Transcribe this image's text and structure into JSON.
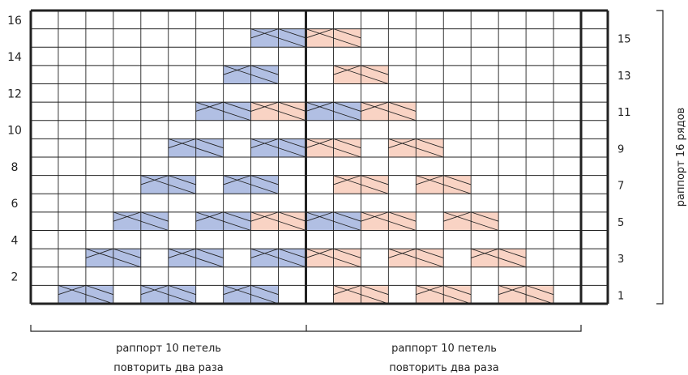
{
  "chart": {
    "columns": 20,
    "rows": 16,
    "left_row_labels": [
      "2",
      "4",
      "6",
      "8",
      "10",
      "12",
      "14",
      "16"
    ],
    "right_row_labels": [
      "1",
      "3",
      "5",
      "7",
      "9",
      "11",
      "13",
      "15"
    ],
    "side_label": "раппорт 16 рядов",
    "bottom_groups": [
      {
        "line1": "раппорт 10 петель",
        "line2": "повторить два раза"
      },
      {
        "line1": "раппорт 10 петель",
        "line2": "повторить два раза"
      }
    ],
    "legend_colors": {
      "blue": "#b1bfe3",
      "pink": "#f9d3c4",
      "grid": "#222222"
    }
  },
  "cables": [
    {
      "row": 1,
      "col": 2,
      "color": "blue"
    },
    {
      "row": 1,
      "col": 5,
      "color": "blue"
    },
    {
      "row": 1,
      "col": 8,
      "color": "blue"
    },
    {
      "row": 1,
      "col": 12,
      "color": "pink"
    },
    {
      "row": 1,
      "col": 15,
      "color": "pink"
    },
    {
      "row": 1,
      "col": 18,
      "color": "pink"
    },
    {
      "row": 3,
      "col": 3,
      "color": "blue"
    },
    {
      "row": 3,
      "col": 6,
      "color": "blue"
    },
    {
      "row": 3,
      "col": 9,
      "color": "blue"
    },
    {
      "row": 3,
      "col": 11,
      "color": "pink"
    },
    {
      "row": 3,
      "col": 14,
      "color": "pink"
    },
    {
      "row": 3,
      "col": 17,
      "color": "pink"
    },
    {
      "row": 5,
      "col": 4,
      "color": "blue"
    },
    {
      "row": 5,
      "col": 7,
      "color": "blue"
    },
    {
      "row": 5,
      "col": 9,
      "color": "pink"
    },
    {
      "row": 5,
      "col": 11,
      "color": "blue"
    },
    {
      "row": 5,
      "col": 13,
      "color": "pink"
    },
    {
      "row": 5,
      "col": 16,
      "color": "pink"
    },
    {
      "row": 7,
      "col": 5,
      "color": "blue"
    },
    {
      "row": 7,
      "col": 8,
      "color": "blue"
    },
    {
      "row": 7,
      "col": 12,
      "color": "pink"
    },
    {
      "row": 7,
      "col": 15,
      "color": "pink"
    },
    {
      "row": 9,
      "col": 6,
      "color": "blue"
    },
    {
      "row": 9,
      "col": 9,
      "color": "blue"
    },
    {
      "row": 9,
      "col": 11,
      "color": "pink"
    },
    {
      "row": 9,
      "col": 14,
      "color": "pink"
    },
    {
      "row": 11,
      "col": 7,
      "color": "blue"
    },
    {
      "row": 11,
      "col": 9,
      "color": "pink"
    },
    {
      "row": 11,
      "col": 11,
      "color": "blue"
    },
    {
      "row": 11,
      "col": 13,
      "color": "pink"
    },
    {
      "row": 13,
      "col": 8,
      "color": "blue"
    },
    {
      "row": 13,
      "col": 12,
      "color": "pink"
    },
    {
      "row": 15,
      "col": 9,
      "color": "blue"
    },
    {
      "row": 15,
      "col": 11,
      "color": "pink"
    }
  ]
}
